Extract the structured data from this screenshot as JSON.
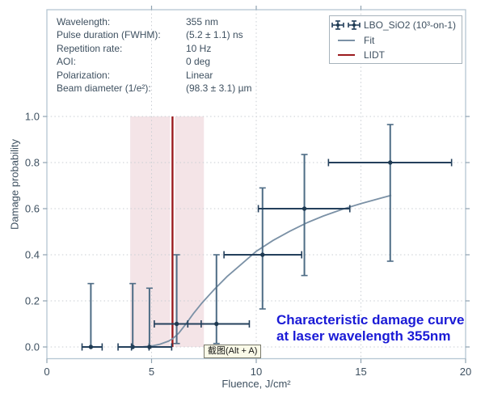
{
  "colors": {
    "data": "#24405c",
    "data_vertical_err": "#4e6c85",
    "marker": "#1e3a52",
    "fit": "#7b91a6",
    "lidt": "#9b1b1e",
    "lidt_band": "#f4e4e7",
    "frame": "#b5c7d3",
    "ticks": "#8fa2b0",
    "grid": "#c9ced3",
    "text": "#3e5060",
    "annotation": "#1a1ad6"
  },
  "info_panel": {
    "rows": [
      {
        "label": "Wavelength:",
        "value": "355 nm"
      },
      {
        "label": "Pulse duration (FWHM):",
        "value": "(5.2 ± 1.1) ns"
      },
      {
        "label": "Repetition rate:",
        "value": "10 Hz"
      },
      {
        "label": "AOI:",
        "value": "0 deg"
      },
      {
        "label": "Polarization:",
        "value": "Linear"
      },
      {
        "label": "Beam diameter (1/e²):",
        "value": "(98.3 ± 3.1) µm"
      }
    ]
  },
  "legend": {
    "items": [
      {
        "label": "LBO_SiO2 (10³-on-1)",
        "marker": "errorbar-cross"
      },
      {
        "label": "Fit",
        "marker": "line"
      },
      {
        "label": "LIDT",
        "marker": "line"
      }
    ]
  },
  "annotation": {
    "line1": "Characteristic damage curve",
    "line2": "at laser wavelength 355nm"
  },
  "screenshot_tooltip": {
    "text": "截图(Alt + A)"
  },
  "chart_data": {
    "type": "scatter",
    "xlabel": "Fluence, J/cm²",
    "ylabel": "Damage probability",
    "xlim": [
      0,
      20
    ],
    "ylim": [
      -0.05,
      1.45
    ],
    "x_ticks": [
      0,
      5,
      10,
      15,
      20
    ],
    "y_ticks": [
      0.0,
      0.2,
      0.4,
      0.6,
      0.8,
      1.0
    ],
    "grid": true,
    "legend_position": "top-right",
    "series": [
      {
        "name": "LBO_SiO2 (10³-on-1)",
        "type": "scatter",
        "points": [
          {
            "x": 2.1,
            "y": 0.0,
            "x_err": [
              1.68,
              2.64
            ],
            "y_err": [
              0.0,
              0.275
            ]
          },
          {
            "x": 4.1,
            "y": 0.0,
            "x_err": [
              3.4,
              4.88
            ],
            "y_err": [
              0.0,
              0.275
            ]
          },
          {
            "x": 4.9,
            "y": 0.0,
            "x_err": [
              4.04,
              5.96
            ],
            "y_err": [
              0.0,
              0.255
            ]
          },
          {
            "x": 6.2,
            "y": 0.1,
            "x_err": [
              5.13,
              7.37
            ],
            "y_err": [
              0.015,
              0.4
            ]
          },
          {
            "x": 8.1,
            "y": 0.1,
            "x_err": [
              6.73,
              9.67
            ],
            "y_err": [
              0.015,
              0.4
            ]
          },
          {
            "x": 10.3,
            "y": 0.4,
            "x_err": [
              8.46,
              12.17
            ],
            "y_err": [
              0.165,
              0.69
            ]
          },
          {
            "x": 12.3,
            "y": 0.6,
            "x_err": [
              10.1,
              14.47
            ],
            "y_err": [
              0.31,
              0.835
            ]
          },
          {
            "x": 16.4,
            "y": 0.8,
            "x_err": [
              13.45,
              19.33
            ],
            "y_err": [
              0.372,
              0.965
            ]
          }
        ]
      },
      {
        "name": "Fit",
        "type": "line",
        "points": [
          [
            4.6,
            0.001
          ],
          [
            5.0,
            0.004
          ],
          [
            5.4,
            0.012
          ],
          [
            5.8,
            0.025
          ],
          [
            6.0,
            0.035
          ],
          [
            6.3,
            0.06
          ],
          [
            6.6,
            0.095
          ],
          [
            7.0,
            0.145
          ],
          [
            7.4,
            0.19
          ],
          [
            8.0,
            0.25
          ],
          [
            8.6,
            0.305
          ],
          [
            9.3,
            0.36
          ],
          [
            10.0,
            0.415
          ],
          [
            10.8,
            0.462
          ],
          [
            11.6,
            0.502
          ],
          [
            12.4,
            0.538
          ],
          [
            13.2,
            0.568
          ],
          [
            14.1,
            0.597
          ],
          [
            15.0,
            0.622
          ],
          [
            16.0,
            0.647
          ],
          [
            16.45,
            0.658
          ]
        ]
      },
      {
        "name": "LIDT",
        "type": "vline",
        "x": 6.0,
        "y_span": [
          0.0,
          1.0
        ],
        "uncertainty_band": {
          "x_range": [
            3.98,
            7.5
          ]
        }
      }
    ]
  }
}
